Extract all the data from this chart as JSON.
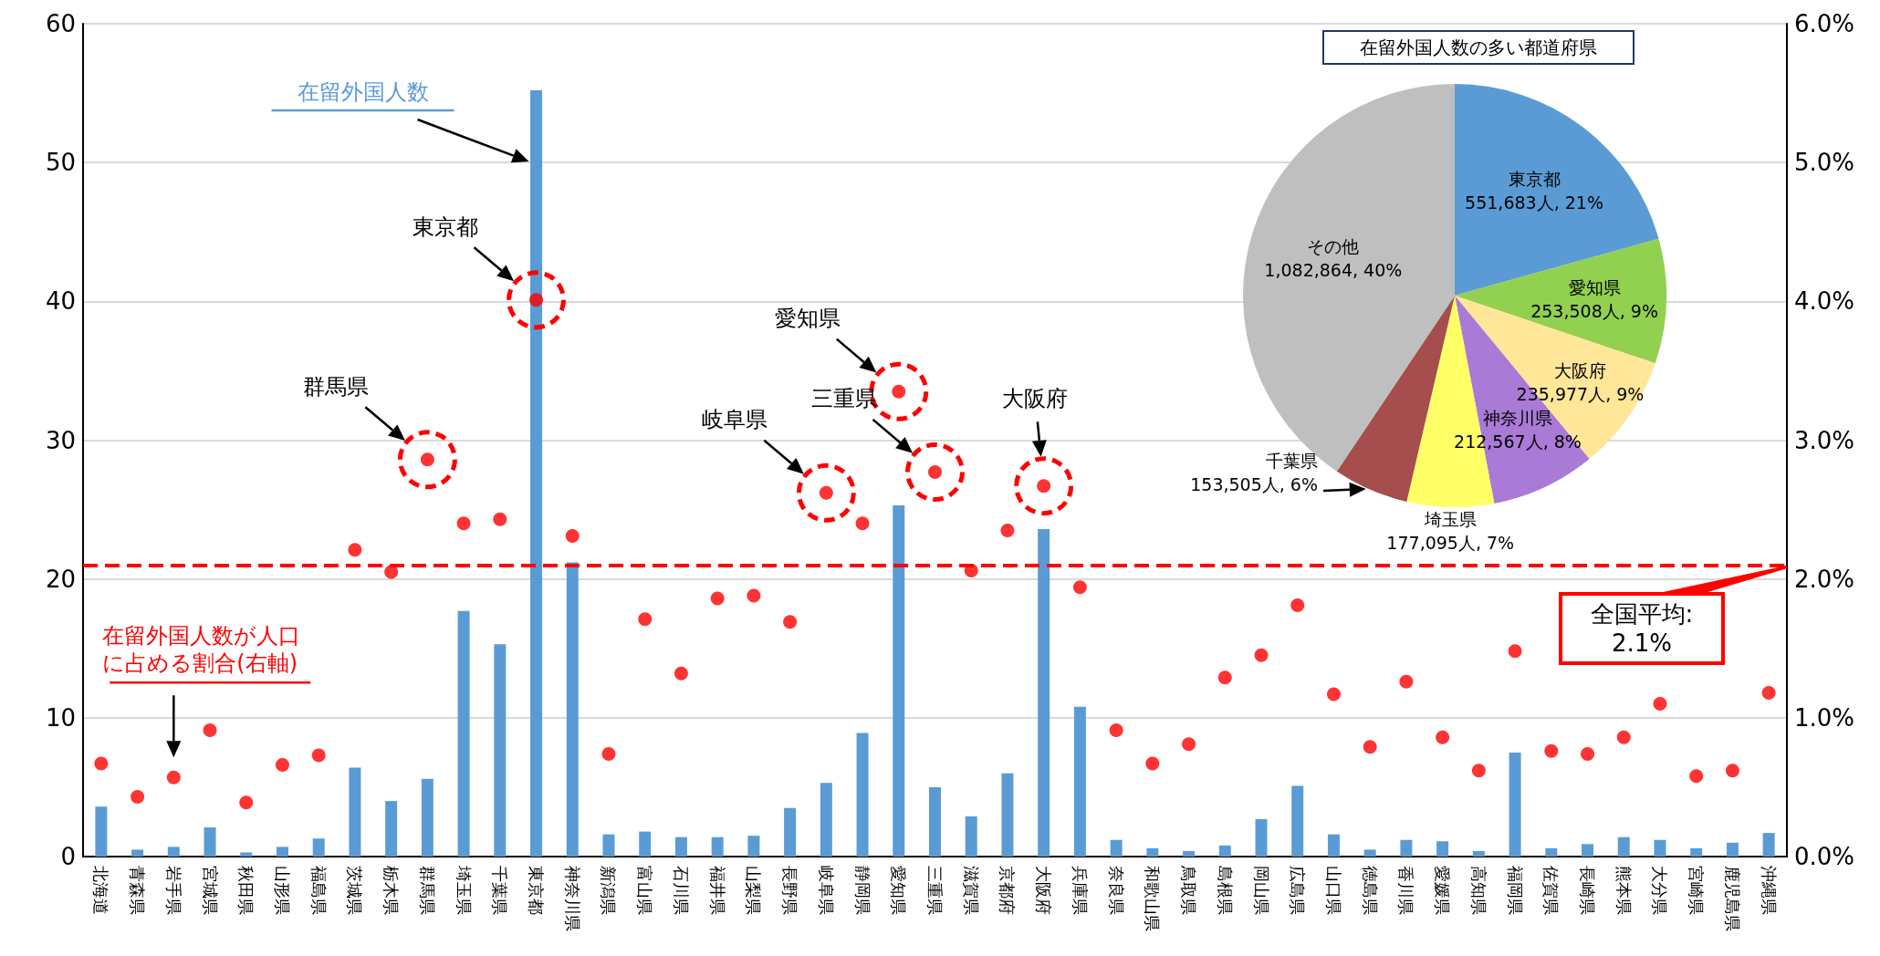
{
  "chart_data": [
    {
      "type": "bar",
      "categories": [
        "北海道",
        "青森県",
        "岩手県",
        "宮城県",
        "秋田県",
        "山形県",
        "福島県",
        "茨城県",
        "栃木県",
        "群馬県",
        "埼玉県",
        "千葉県",
        "東京都",
        "神奈川県",
        "新潟県",
        "富山県",
        "石川県",
        "福井県",
        "山梨県",
        "長野県",
        "岐阜県",
        "静岡県",
        "愛知県",
        "三重県",
        "滋賀県",
        "京都府",
        "大阪府",
        "兵庫県",
        "奈良県",
        "和歌山県",
        "鳥取県",
        "島根県",
        "岡山県",
        "広島県",
        "山口県",
        "徳島県",
        "香川県",
        "愛媛県",
        "高知県",
        "福岡県",
        "佐賀県",
        "長崎県",
        "熊本県",
        "大分県",
        "宮崎県",
        "鹿児島県",
        "沖縄県"
      ],
      "series": [
        {
          "name": "在留外国人数",
          "color": "#5b9bd5",
          "values": [
            3.6,
            0.5,
            0.7,
            2.1,
            0.3,
            0.7,
            1.3,
            6.4,
            4.0,
            5.6,
            17.7,
            15.3,
            55.2,
            21.2,
            1.6,
            1.8,
            1.4,
            1.4,
            1.5,
            3.5,
            5.3,
            8.9,
            25.3,
            5.0,
            2.9,
            6.0,
            23.6,
            10.8,
            1.2,
            0.6,
            0.4,
            0.8,
            2.7,
            5.1,
            1.6,
            0.5,
            1.2,
            1.1,
            0.4,
            7.5,
            0.6,
            0.9,
            1.4,
            1.2,
            0.6,
            1.0,
            1.7
          ]
        },
        {
          "name": "在留外国人数が人口に占める割合(右軸)",
          "type": "scatter",
          "axis": "y2",
          "color": "#ff0000",
          "values": [
            0.67,
            0.43,
            0.57,
            0.91,
            0.39,
            0.66,
            0.73,
            2.21,
            2.05,
            2.86,
            2.4,
            2.43,
            4.01,
            2.31,
            0.74,
            1.71,
            1.32,
            1.86,
            1.88,
            1.69,
            2.62,
            2.4,
            3.35,
            2.77,
            2.06,
            2.35,
            2.67,
            1.94,
            0.91,
            0.67,
            0.81,
            1.29,
            1.45,
            1.81,
            1.17,
            0.79,
            1.26,
            0.86,
            0.62,
            1.48,
            0.76,
            0.74,
            0.86,
            1.1,
            0.58,
            0.62,
            1.18
          ]
        }
      ],
      "ylim": [
        0,
        60
      ],
      "yticks": [
        0,
        10,
        20,
        30,
        40,
        50,
        60
      ],
      "y2lim": [
        0,
        6
      ],
      "y2ticks": [
        {
          "value": 0,
          "label": "0.0%"
        },
        {
          "value": 1,
          "label": "1.0%"
        },
        {
          "value": 2,
          "label": "2.0%"
        },
        {
          "value": 3,
          "label": "3.0%"
        },
        {
          "value": 4,
          "label": "4.0%"
        },
        {
          "value": 5,
          "label": "5.0%"
        },
        {
          "value": 6,
          "label": "6.0%"
        }
      ],
      "ref_lines": [
        {
          "axis": "y2",
          "value": 2.1,
          "label": "全国平均: 2.1%",
          "color": "#ff0000",
          "line_style": "dashed"
        }
      ],
      "annotations": [
        "東京都",
        "群馬県",
        "岐阜県",
        "愛知県",
        "三重県",
        "大阪府"
      ],
      "marker": "circle",
      "grid": "y",
      "legend": false
    },
    {
      "type": "pie",
      "title": "在留外国人数の多い都道府県",
      "categories": [
        "東京都",
        "愛知県",
        "大阪府",
        "神奈川県",
        "埼玉県",
        "千葉県",
        "その他"
      ],
      "values": [
        551683,
        253508,
        235977,
        212567,
        177095,
        153505,
        1082864
      ],
      "value_labels": [
        "551,683人, 21%",
        "253,508人, 9%",
        "235,977人, 9%",
        "212,567人, 8%",
        "177,095人, 7%",
        "153,505人, 6%",
        "1,082,864, 40%"
      ],
      "colors": [
        "#5b9bd5",
        "#92d050",
        "#ffe699",
        "#a97ad6",
        "#ffff66",
        "#a64d4d",
        "#bfbfbf"
      ],
      "legend": false
    }
  ]
}
